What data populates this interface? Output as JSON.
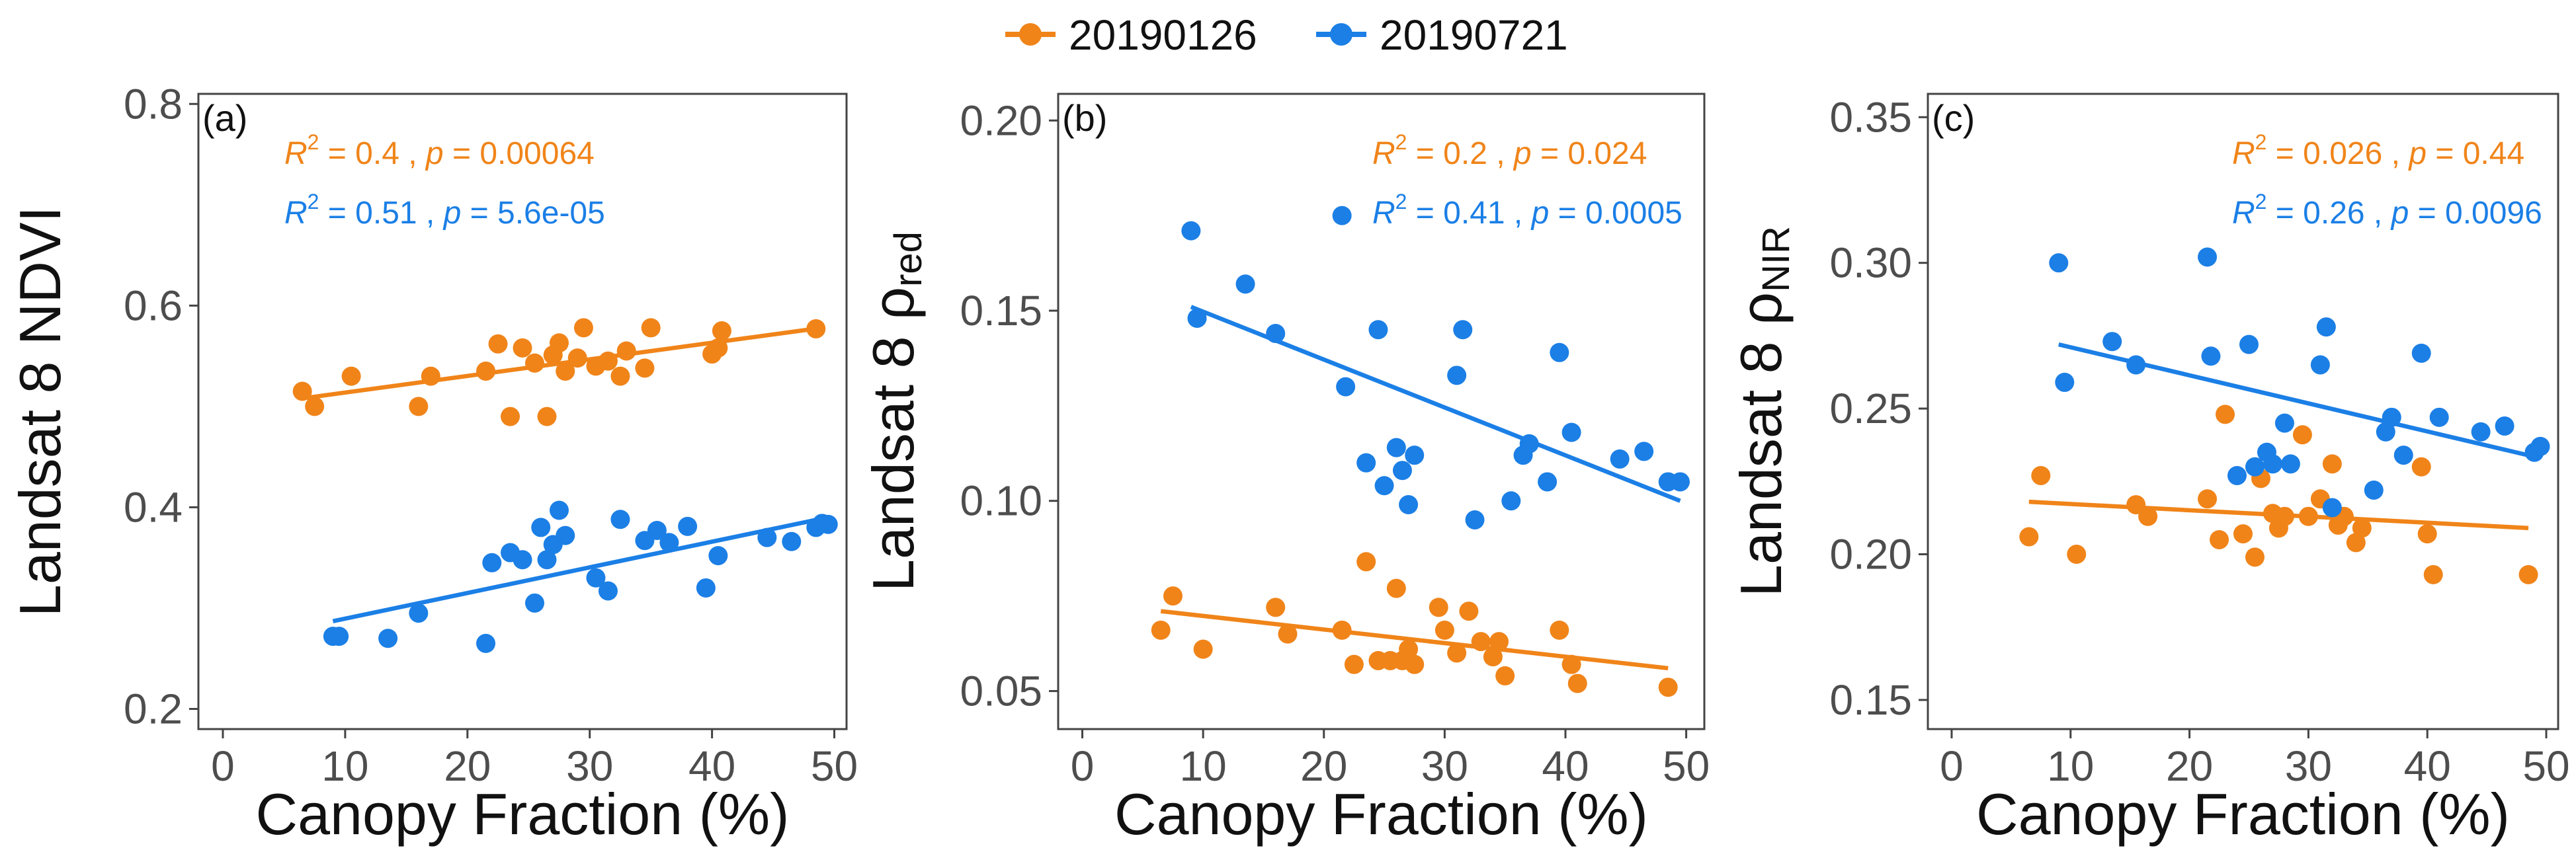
{
  "colors": {
    "series_2019_01": "#f08419",
    "series_2019_07": "#1b7fe6",
    "axis": "#444444",
    "tick_text": "#4d4d4d"
  },
  "legend": [
    {
      "label": "20190126",
      "color": "#f08419"
    },
    {
      "label": "20190721",
      "color": "#1b7fe6"
    }
  ],
  "chart_data": [
    {
      "type": "scatter",
      "panel_label": "(a)",
      "title": "",
      "xlabel": "Canopy Fraction (%)",
      "ylabel_main": "Landsat 8 NDVI",
      "ylabel_sub": "",
      "xlim": [
        -2,
        51
      ],
      "ylim": [
        0.18,
        0.81
      ],
      "xticks": [
        0,
        10,
        20,
        30,
        40,
        50
      ],
      "xtick_labels": [
        "0",
        "10",
        "20",
        "30",
        "40",
        "50"
      ],
      "yticks": [
        0.2,
        0.4,
        0.6,
        0.8
      ],
      "ytick_labels": [
        "0.2",
        "0.4",
        "0.6",
        "0.8"
      ],
      "series": [
        {
          "name": "20190126",
          "color": "#f08419",
          "stats": {
            "r2": "0.4",
            "p": "0.00064"
          },
          "fit": {
            "x": [
              6.5,
              49
            ],
            "y": [
              0.508,
              0.578
            ]
          },
          "points": [
            [
              6.5,
              0.515
            ],
            [
              7.5,
              0.5
            ],
            [
              10.5,
              0.53
            ],
            [
              16,
              0.5
            ],
            [
              17,
              0.53
            ],
            [
              21.5,
              0.535
            ],
            [
              22.5,
              0.562
            ],
            [
              23.5,
              0.49
            ],
            [
              24.5,
              0.558
            ],
            [
              25.5,
              0.543
            ],
            [
              26.5,
              0.49
            ],
            [
              27,
              0.551
            ],
            [
              27.5,
              0.563
            ],
            [
              28,
              0.535
            ],
            [
              29,
              0.548
            ],
            [
              29.5,
              0.578
            ],
            [
              30.5,
              0.54
            ],
            [
              31.5,
              0.545
            ],
            [
              32.5,
              0.53
            ],
            [
              33,
              0.555
            ],
            [
              34.5,
              0.538
            ],
            [
              35,
              0.578
            ],
            [
              40,
              0.552
            ],
            [
              40.5,
              0.558
            ],
            [
              40.8,
              0.575
            ],
            [
              48.5,
              0.577
            ]
          ]
        },
        {
          "name": "20190721",
          "color": "#1b7fe6",
          "stats": {
            "r2": "0.51",
            "p": "5.6e-05"
          },
          "fit": {
            "x": [
              9,
              49.5
            ],
            "y": [
              0.287,
              0.39
            ]
          },
          "points": [
            [
              9,
              0.272
            ],
            [
              9.5,
              0.272
            ],
            [
              13.5,
              0.27
            ],
            [
              16,
              0.295
            ],
            [
              21.5,
              0.265
            ],
            [
              22,
              0.345
            ],
            [
              23.5,
              0.355
            ],
            [
              24.5,
              0.348
            ],
            [
              25.5,
              0.305
            ],
            [
              26,
              0.38
            ],
            [
              26.5,
              0.348
            ],
            [
              27,
              0.363
            ],
            [
              27.5,
              0.397
            ],
            [
              28,
              0.372
            ],
            [
              30.5,
              0.33
            ],
            [
              31.5,
              0.317
            ],
            [
              32.5,
              0.388
            ],
            [
              34.5,
              0.367
            ],
            [
              35.5,
              0.377
            ],
            [
              36.5,
              0.365
            ],
            [
              38,
              0.381
            ],
            [
              39.5,
              0.32
            ],
            [
              40.5,
              0.352
            ],
            [
              44.5,
              0.37
            ],
            [
              46.5,
              0.366
            ],
            [
              48.5,
              0.38
            ],
            [
              49,
              0.384
            ],
            [
              49.5,
              0.383
            ]
          ]
        }
      ]
    },
    {
      "type": "scatter",
      "panel_label": "(b)",
      "title": "",
      "xlabel": "Canopy Fraction (%)",
      "ylabel_main": "Landsat 8 ",
      "ylabel_sub": "ρ_red",
      "ylabel_greek": "ρ",
      "ylabel_subscript": "red",
      "xlim": [
        -2,
        51.5
      ],
      "ylim": [
        0.04,
        0.207
      ],
      "xticks": [
        0,
        10,
        20,
        30,
        40,
        50
      ],
      "xtick_labels": [
        "0",
        "10",
        "20",
        "30",
        "40",
        "50"
      ],
      "yticks": [
        0.05,
        0.1,
        0.15,
        0.2
      ],
      "ytick_labels": [
        "0.05",
        "0.10",
        "0.15",
        "0.20"
      ],
      "series": [
        {
          "name": "20190126",
          "color": "#f08419",
          "stats": {
            "r2": "0.2",
            "p": "0.024"
          },
          "fit": {
            "x": [
              6.5,
              48.5
            ],
            "y": [
              0.071,
              0.056
            ]
          },
          "points": [
            [
              6.5,
              0.066
            ],
            [
              7.5,
              0.075
            ],
            [
              10,
              0.061
            ],
            [
              16,
              0.072
            ],
            [
              17,
              0.065
            ],
            [
              21.5,
              0.066
            ],
            [
              22.5,
              0.057
            ],
            [
              23.5,
              0.084
            ],
            [
              24.5,
              0.058
            ],
            [
              25.5,
              0.058
            ],
            [
              26,
              0.077
            ],
            [
              26.5,
              0.058
            ],
            [
              27,
              0.061
            ],
            [
              27.5,
              0.057
            ],
            [
              29.5,
              0.072
            ],
            [
              30,
              0.066
            ],
            [
              31,
              0.06
            ],
            [
              32,
              0.071
            ],
            [
              33,
              0.063
            ],
            [
              34,
              0.059
            ],
            [
              34.5,
              0.063
            ],
            [
              35,
              0.054
            ],
            [
              39.5,
              0.066
            ],
            [
              40.5,
              0.057
            ],
            [
              41,
              0.052
            ],
            [
              48.5,
              0.051
            ]
          ]
        },
        {
          "name": "20190721",
          "color": "#1b7fe6",
          "stats": {
            "r2": "0.41",
            "p": "0.0005"
          },
          "fit": {
            "x": [
              9,
              49.5
            ],
            "y": [
              0.151,
              0.1
            ]
          },
          "points": [
            [
              9,
              0.171
            ],
            [
              9.5,
              0.148
            ],
            [
              13.5,
              0.157
            ],
            [
              16,
              0.144
            ],
            [
              21.5,
              0.175
            ],
            [
              21.8,
              0.13
            ],
            [
              23.5,
              0.11
            ],
            [
              24.5,
              0.145
            ],
            [
              25,
              0.104
            ],
            [
              26,
              0.114
            ],
            [
              26.5,
              0.108
            ],
            [
              27,
              0.099
            ],
            [
              27.5,
              0.112
            ],
            [
              31,
              0.133
            ],
            [
              31.5,
              0.145
            ],
            [
              32.5,
              0.095
            ],
            [
              35.5,
              0.1
            ],
            [
              36.5,
              0.112
            ],
            [
              37,
              0.115
            ],
            [
              38.5,
              0.105
            ],
            [
              39.5,
              0.139
            ],
            [
              40.5,
              0.118
            ],
            [
              44.5,
              0.111
            ],
            [
              46.5,
              0.113
            ],
            [
              48.5,
              0.105
            ],
            [
              49.5,
              0.105
            ]
          ]
        }
      ]
    },
    {
      "type": "scatter",
      "panel_label": "(c)",
      "title": "",
      "xlabel": "Canopy Fraction (%)",
      "ylabel_main": "Landsat 8 ",
      "ylabel_sub": "ρ_NIR",
      "ylabel_greek": "ρ",
      "ylabel_subscript": "NIR",
      "xlim": [
        -2,
        51
      ],
      "ylim": [
        0.14,
        0.358
      ],
      "xticks": [
        0,
        10,
        20,
        30,
        40,
        50
      ],
      "xtick_labels": [
        "0",
        "10",
        "20",
        "30",
        "40",
        "50"
      ],
      "yticks": [
        0.15,
        0.2,
        0.25,
        0.3,
        0.35
      ],
      "ytick_labels": [
        "0.15",
        "0.20",
        "0.25",
        "0.30",
        "0.35"
      ],
      "series": [
        {
          "name": "20190126",
          "color": "#f08419",
          "stats": {
            "r2": "0.026",
            "p": "0.44"
          },
          "fit": {
            "x": [
              6.5,
              48.5
            ],
            "y": [
              0.218,
              0.209
            ]
          },
          "points": [
            [
              6.5,
              0.206
            ],
            [
              7.5,
              0.227
            ],
            [
              10.5,
              0.2
            ],
            [
              15.5,
              0.217
            ],
            [
              16.5,
              0.213
            ],
            [
              21.5,
              0.219
            ],
            [
              22.5,
              0.205
            ],
            [
              23,
              0.248
            ],
            [
              24.5,
              0.207
            ],
            [
              25.5,
              0.199
            ],
            [
              26,
              0.226
            ],
            [
              27,
              0.214
            ],
            [
              27.5,
              0.209
            ],
            [
              28,
              0.213
            ],
            [
              29.5,
              0.241
            ],
            [
              30,
              0.213
            ],
            [
              31,
              0.219
            ],
            [
              32,
              0.231
            ],
            [
              32.5,
              0.21
            ],
            [
              33,
              0.213
            ],
            [
              34,
              0.204
            ],
            [
              34.5,
              0.209
            ],
            [
              39.5,
              0.23
            ],
            [
              40,
              0.207
            ],
            [
              40.5,
              0.193
            ],
            [
              48.5,
              0.193
            ]
          ]
        },
        {
          "name": "20190721",
          "color": "#1b7fe6",
          "stats": {
            "r2": "0.26",
            "p": "0.0096"
          },
          "fit": {
            "x": [
              9,
              49.5
            ],
            "y": [
              0.272,
              0.233
            ]
          },
          "points": [
            [
              9,
              0.3
            ],
            [
              9.5,
              0.259
            ],
            [
              13.5,
              0.273
            ],
            [
              15.5,
              0.265
            ],
            [
              21.5,
              0.302
            ],
            [
              21.8,
              0.268
            ],
            [
              24,
              0.227
            ],
            [
              25,
              0.272
            ],
            [
              25.5,
              0.23
            ],
            [
              26.5,
              0.235
            ],
            [
              27,
              0.231
            ],
            [
              28,
              0.245
            ],
            [
              28.5,
              0.231
            ],
            [
              31,
              0.265
            ],
            [
              31.5,
              0.278
            ],
            [
              32,
              0.216
            ],
            [
              35.5,
              0.222
            ],
            [
              36.5,
              0.242
            ],
            [
              37,
              0.247
            ],
            [
              38,
              0.234
            ],
            [
              39.5,
              0.269
            ],
            [
              41,
              0.247
            ],
            [
              44.5,
              0.242
            ],
            [
              46.5,
              0.244
            ],
            [
              49,
              0.235
            ],
            [
              49.5,
              0.237
            ]
          ]
        }
      ]
    }
  ]
}
